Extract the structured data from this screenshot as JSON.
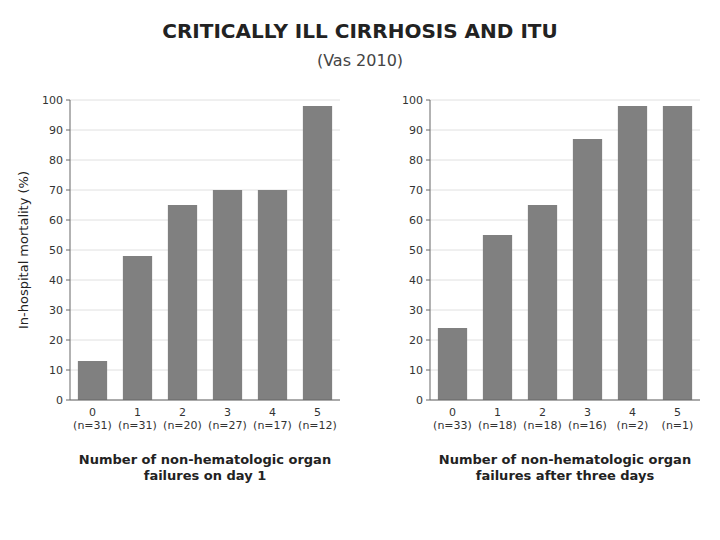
{
  "title": "CRITICALLY ILL CIRRHOSIS AND ITU",
  "subtitle": "(Vas 2010)",
  "chart_data": [
    {
      "type": "bar",
      "categories": [
        "0\n(n=31)",
        "1\n(n=31)",
        "2\n(n=20)",
        "3\n(n=27)",
        "4\n(n=17)",
        "5\n(n=12)"
      ],
      "values": [
        13,
        48,
        65,
        70,
        70,
        98
      ],
      "color": "#808080",
      "ylabel": "In-hospital mortality (%)",
      "xlabel": "Number of non-hematologic organ\nfailures on day 1",
      "ylim": [
        0,
        100
      ],
      "yticks": [
        0,
        10,
        20,
        30,
        40,
        50,
        60,
        70,
        80,
        90,
        100
      ],
      "grid": true
    },
    {
      "type": "bar",
      "categories": [
        "0\n(n=33)",
        "1\n(n=18)",
        "2\n(n=18)",
        "3\n(n=16)",
        "4\n(n=2)",
        "5\n(n=1)"
      ],
      "values": [
        24,
        55,
        65,
        87,
        98,
        98
      ],
      "color": "#808080",
      "xlabel": "Number of non-hematologic organ\nfailures after three days",
      "ylim": [
        0,
        100
      ],
      "yticks": [
        0,
        10,
        20,
        30,
        40,
        50,
        60,
        70,
        80,
        90,
        100
      ],
      "grid": true
    }
  ]
}
